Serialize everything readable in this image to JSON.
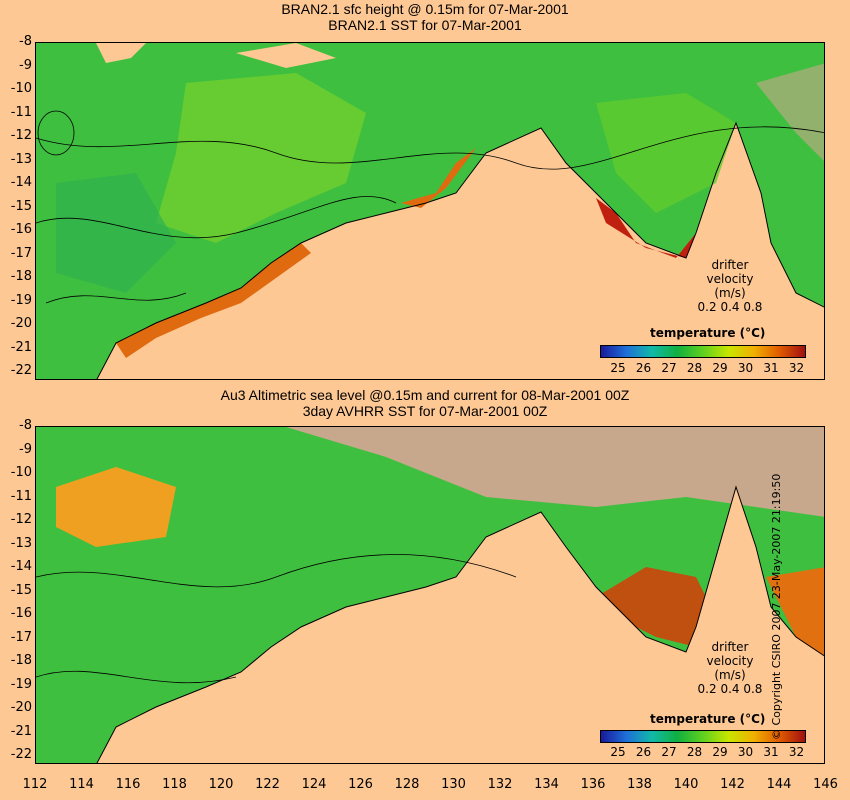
{
  "top_panel": {
    "title_line1": "BRAN2.1 sfc height @ 0.15m for 07-Mar-2001",
    "title_line2": "BRAN2.1 SST for 07-Mar-2001",
    "legend_title": "temperature (°C)",
    "drifter_label": "drifter",
    "velocity_label": "velocity (m/s)",
    "velocity_scale": "0.2  0.4  0.8"
  },
  "bottom_panel": {
    "title_line1": "Au3 Altimetric sea level  @0.15m and current for 08-Mar-2001 00Z",
    "title_line2": "3day AVHRR SST for 07-Mar-2001 00Z",
    "legend_title": "temperature (°C)",
    "drifter_label": "drifter",
    "velocity_label": "velocity (m/s)",
    "velocity_scale": "0.2  0.4  0.8"
  },
  "y_ticks": [
    "-8",
    "-9",
    "-10",
    "-11",
    "-12",
    "-13",
    "-14",
    "-15",
    "-16",
    "-17",
    "-18",
    "-19",
    "-20",
    "-21",
    "-22"
  ],
  "x_ticks": [
    "112",
    "114",
    "116",
    "118",
    "120",
    "122",
    "124",
    "126",
    "128",
    "130",
    "132",
    "134",
    "136",
    "138",
    "140",
    "142",
    "144",
    "146"
  ],
  "colorbar_ticks": [
    "25",
    "26",
    "27",
    "28",
    "29",
    "30",
    "31",
    "32"
  ],
  "colorbar_colors": [
    "#1a1a9c",
    "#1e6fd8",
    "#12b9a8",
    "#10b040",
    "#5fd020",
    "#c8e600",
    "#f0b000",
    "#e05a00",
    "#a01010"
  ],
  "copyright": "© Copyright CSIRO 2007  23-May-2007 21:19:50",
  "colors": {
    "land": "#fec894",
    "ocean_green": "#3fbf3f",
    "no_data": "#c8a88c"
  }
}
